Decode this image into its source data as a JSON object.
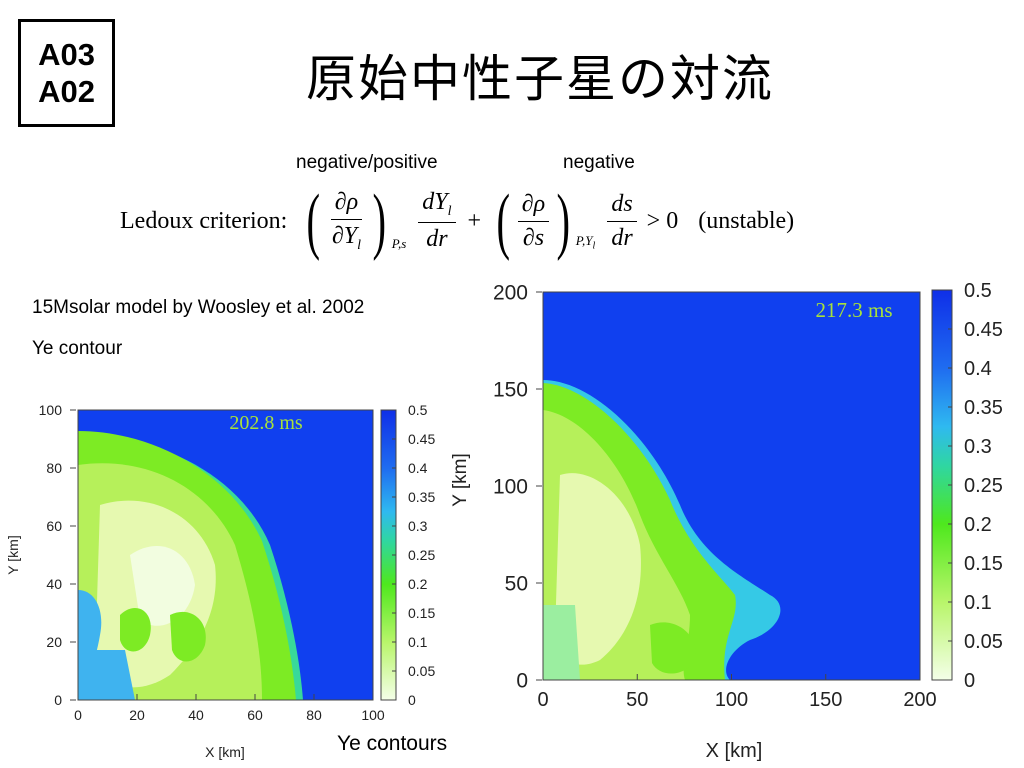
{
  "header": {
    "codes": [
      "A03",
      "A02"
    ],
    "title": "原始中性子星の対流"
  },
  "formula": {
    "negative_positive": "negative/positive",
    "negative": "negative",
    "criterion": "Ledoux criterion:",
    "t1_num": "∂ρ",
    "t1_den": "∂Y",
    "t1_den_sub": "l",
    "t1_sub": "P,s",
    "t2_num": "dY",
    "t2_num_sub": "l",
    "t2_den": "dr",
    "plus": "+",
    "t3_num": "∂ρ",
    "t3_den": "∂s",
    "t3_sub": "P,Y",
    "t3_sub_sub": "l",
    "t4_num": "ds",
    "t4_den": "dr",
    "gt": "> 0",
    "unstable": "(unstable)"
  },
  "notes": {
    "model": "15Msolar model by Woosley et al. 2002",
    "contour": "Ye contour"
  },
  "colorbar_ticks": [
    "0",
    "0.05",
    "0.1",
    "0.15",
    "0.2",
    "0.25",
    "0.3",
    "0.35",
    "0.4",
    "0.45",
    "0.5"
  ],
  "left_plot": {
    "time": "202.8 ms",
    "xlabel": "X [km]",
    "ylabel": "Y [km]",
    "xticks": [
      "0",
      "20",
      "40",
      "60",
      "80",
      "100"
    ],
    "yticks": [
      "0",
      "20",
      "40",
      "60",
      "80",
      "100"
    ],
    "colorbar_title": "Y [km]"
  },
  "right_plot": {
    "time": "217.3 ms",
    "xlabel": "X [km]",
    "xticks": [
      "0",
      "50",
      "100",
      "150",
      "200"
    ],
    "yticks": [
      "0",
      "50",
      "100",
      "150",
      "200"
    ]
  },
  "caption": "Ye contours",
  "colors": {
    "high_ye": "#1040ef",
    "mid_ye": "#6ee91d",
    "low_ye": "#f2ffd9",
    "time_label": "#a8e23a"
  }
}
